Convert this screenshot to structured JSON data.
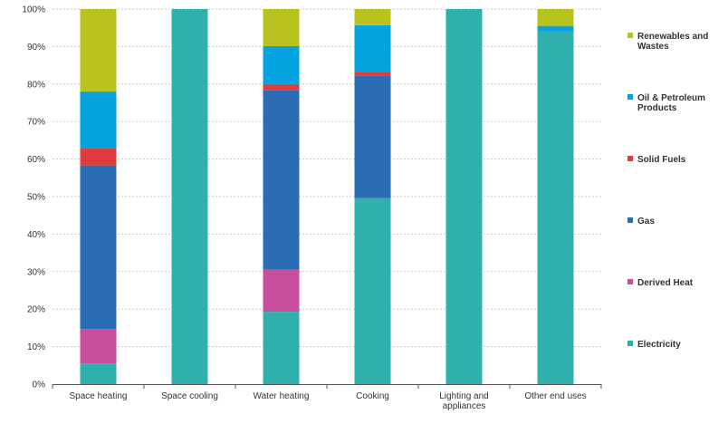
{
  "chart_data": {
    "type": "bar",
    "stacked": true,
    "percent": true,
    "categories": [
      [
        "Space heating"
      ],
      [
        "Space cooling"
      ],
      [
        "Water heating"
      ],
      [
        "Cooking"
      ],
      [
        "Lighting and",
        "appliances"
      ],
      [
        "Other end uses"
      ]
    ],
    "series": [
      {
        "name": "Electricity",
        "color": "#2fb0ac",
        "values": [
          5.5,
          100,
          19.3,
          49.6,
          100,
          94.0
        ]
      },
      {
        "name": "Derived Heat",
        "color": "#c74f9c",
        "values": [
          9.2,
          0,
          11.2,
          0,
          0,
          0
        ]
      },
      {
        "name": "Gas",
        "color": "#2a6db5",
        "values": [
          43.6,
          0,
          47.8,
          32.7,
          0,
          0
        ]
      },
      {
        "name": "Solid Fuels",
        "color": "#e03c3c",
        "values": [
          4.7,
          0,
          1.7,
          1.0,
          0,
          0
        ]
      },
      {
        "name": "Oil & Petroleum Products",
        "color": "#03a3e0",
        "values": [
          15.0,
          0,
          10.1,
          12.4,
          0,
          1.5
        ]
      },
      {
        "name": "Renewables and Wastes",
        "color": "#b9c31d",
        "values": [
          22.0,
          0,
          9.9,
          4.3,
          0,
          4.5
        ]
      }
    ],
    "legend": [
      [
        "Renewables and",
        "Wastes"
      ],
      [
        "Oil & Petroleum",
        "Products"
      ],
      [
        "Solid Fuels"
      ],
      [
        "Gas"
      ],
      [
        "Derived Heat"
      ],
      [
        "Electricity"
      ]
    ],
    "legend_colors": [
      "#b9c31d",
      "#03a3e0",
      "#e03c3c",
      "#2a6db5",
      "#c74f9c",
      "#2fb0ac"
    ],
    "legend_position": "right",
    "y_ticks": [
      "0%",
      "10%",
      "20%",
      "30%",
      "40%",
      "50%",
      "60%",
      "70%",
      "80%",
      "90%",
      "100%"
    ],
    "ylim": [
      0,
      100
    ],
    "grid": "horizontal-dashed",
    "title": "",
    "xlabel": "",
    "ylabel": ""
  }
}
